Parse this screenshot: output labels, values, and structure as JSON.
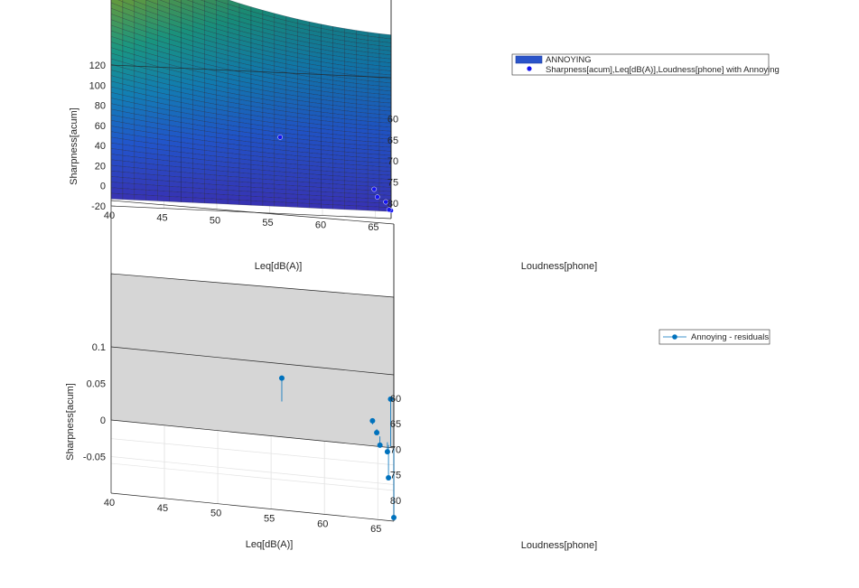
{
  "chart_data": [
    {
      "type": "surface",
      "legend": {
        "position": "top-right",
        "entries": [
          "ANNOYING",
          "Sharpness[acum],Leq[dB(A)],Loudness[phone] with Annoying"
        ]
      },
      "xlabel": "Leq[dB(A)]",
      "ylabel": "Loudness[phone]",
      "zlabel": "Sharpness[acum]",
      "x_ticks": [
        "40",
        "45",
        "50",
        "55",
        "60",
        "65"
      ],
      "y_ticks": [
        "80",
        "75",
        "70",
        "65",
        "60"
      ],
      "z_ticks": [
        "-20",
        "0",
        "20",
        "40",
        "60",
        "80",
        "100",
        "120"
      ],
      "xlim": [
        40,
        66.5
      ],
      "ylim": [
        56.5,
        86
      ],
      "zlim": [
        -20,
        120
      ],
      "grid": true,
      "surface_color": "#2a54c9",
      "marker_color": "#1414f0",
      "points": [
        {
          "leq": 66.5,
          "loud": 86.0,
          "z": -12.0
        },
        {
          "leq": 66.3,
          "loud": 85.6,
          "z": -13.0
        },
        {
          "leq": 66.0,
          "loud": 84.5,
          "z": -10.0
        },
        {
          "leq": 65.2,
          "loud": 83.8,
          "z": -8.5
        },
        {
          "leq": 64.9,
          "loud": 82.6,
          "z": -6.0
        },
        {
          "leq": 56.0,
          "loud": 79.0,
          "z": 25.0
        }
      ]
    },
    {
      "type": "stem3",
      "legend": {
        "position": "top-right",
        "entries": [
          "Annoying - residuals"
        ]
      },
      "xlabel": "Leq[dB(A)]",
      "ylabel": "Loudness[phone]",
      "zlabel": "Sharpness[acum]",
      "x_ticks": [
        "40",
        "45",
        "50",
        "55",
        "60",
        "65"
      ],
      "y_ticks": [
        "80",
        "75",
        "70",
        "65",
        "60"
      ],
      "z_ticks": [
        "-0.05",
        "0",
        "0.05",
        "0.1"
      ],
      "xlim": [
        40,
        66.5
      ],
      "ylim": [
        56.5,
        86
      ],
      "zlim": [
        -0.1,
        0.1
      ],
      "grid": true,
      "plane_color": "#d6d6d6",
      "marker_color": "#0072bd",
      "points": [
        {
          "leq": 66.5,
          "loud": 86.0,
          "z": -0.095
        },
        {
          "leq": 66.2,
          "loud": 85.8,
          "z": 0.065
        },
        {
          "leq": 66.0,
          "loud": 85.5,
          "z": -0.045
        },
        {
          "leq": 65.9,
          "loud": 85.0,
          "z": -0.013
        },
        {
          "leq": 65.2,
          "loud": 84.0,
          "z": -0.012
        },
        {
          "leq": 64.9,
          "loud": 82.6,
          "z": -0.005
        },
        {
          "leq": 64.5,
          "loud": 81.8,
          "z": 0.005
        },
        {
          "leq": 56.0,
          "loud": 79.0,
          "z": 0.032
        }
      ]
    }
  ]
}
